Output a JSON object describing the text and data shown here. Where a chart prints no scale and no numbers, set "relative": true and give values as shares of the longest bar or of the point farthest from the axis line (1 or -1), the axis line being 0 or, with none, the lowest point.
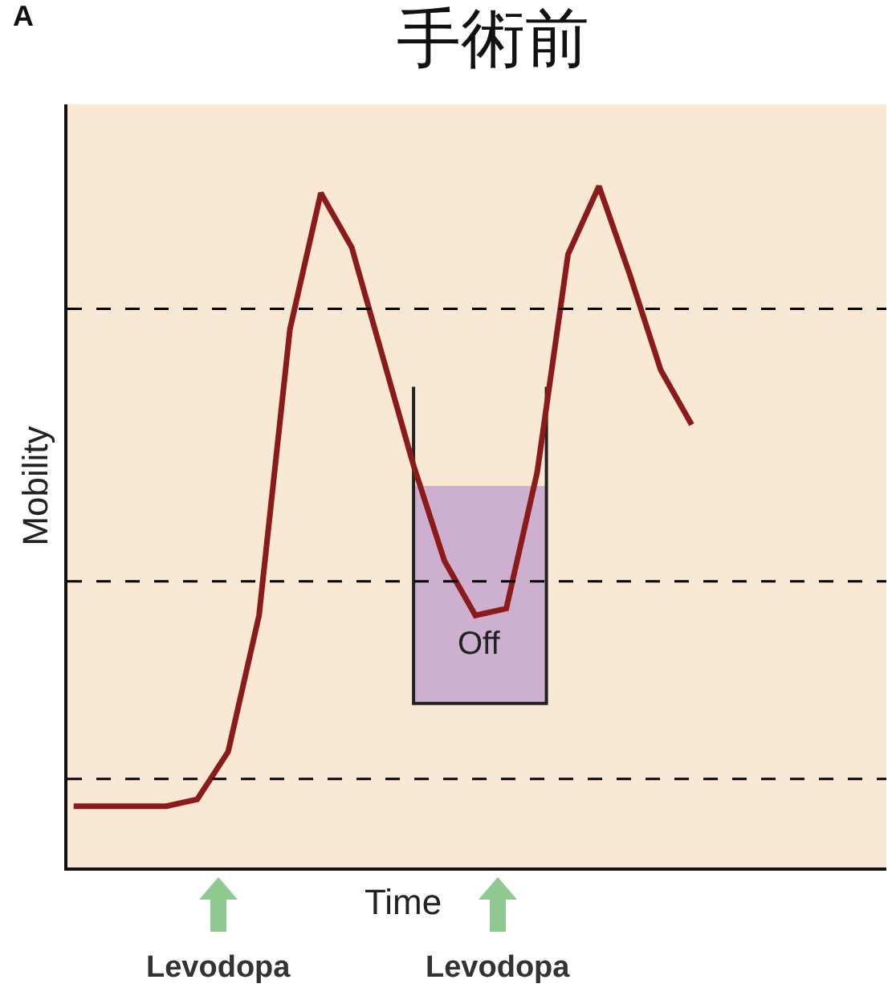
{
  "chart_data": {
    "type": "line",
    "title": "手術前",
    "xlabel": "Time",
    "ylabel": "Mobility",
    "relative": true,
    "categories": [
      null,
      null,
      null,
      null,
      null,
      null,
      null,
      null,
      null,
      null,
      null,
      null,
      null,
      null,
      null,
      null,
      null,
      null,
      null,
      null,
      null
    ],
    "series": [
      {
        "color": "#8b1a1a",
        "values": [
          0.09,
          0.09,
          0.09,
          0.09,
          0.1,
          0.17,
          0.37,
          0.79,
          0.99,
          0.91,
          0.75,
          0.59,
          0.45,
          0.37,
          0.38,
          0.58,
          0.9,
          1.0,
          0.87,
          0.73,
          0.65
        ]
      }
    ],
    "ref_lines": [
      {
        "axis": "y",
        "value": 0.82,
        "color": "#000000",
        "line_style": "dashed"
      },
      {
        "axis": "y",
        "value": 0.42,
        "color": "#000000",
        "line_style": "dashed"
      },
      {
        "axis": "y",
        "value": 0.13,
        "color": "#000000",
        "line_style": "dashed"
      }
    ],
    "annotations": [
      "A",
      "Off",
      "Levodopa",
      "Levodopa"
    ],
    "grid": false,
    "marker": "none",
    "line_style": "solid"
  }
}
